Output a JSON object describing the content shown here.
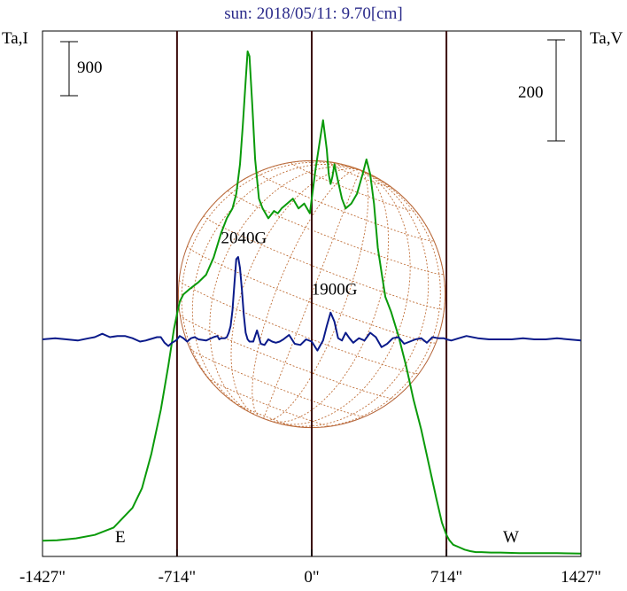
{
  "chart_data": {
    "type": "line",
    "title": "sun: 2018/05/11: 9.70[cm]",
    "left_axis_label": "Ta,I",
    "right_axis_label": "Ta,V",
    "left_scale_bar": "900",
    "right_scale_bar": "200",
    "x_ticks": [
      "-1427\"",
      "-714\"",
      "0\"",
      "714\"",
      "1427\""
    ],
    "x_tick_values": [
      -1427,
      -714,
      0,
      714,
      1427
    ],
    "xlim": [
      -1427,
      1427
    ],
    "vertical_lines": [
      -714,
      0,
      714
    ],
    "limb_labels": {
      "east": "E",
      "west": "W"
    },
    "annotations": [
      {
        "text": "2040G",
        "x": -360,
        "y": 3.6
      },
      {
        "text": "1900G",
        "x": 120,
        "y": 1.3
      }
    ],
    "series": [
      {
        "name": "I",
        "color": "#0a9a0a",
        "axis": "left",
        "x": [
          -1427,
          -1350,
          -1250,
          -1150,
          -1050,
          -950,
          -900,
          -850,
          -800,
          -760,
          -730,
          -714,
          -700,
          -680,
          -650,
          -600,
          -560,
          -520,
          -480,
          -450,
          -420,
          -400,
          -380,
          -365,
          -350,
          -340,
          -330,
          -315,
          -300,
          -280,
          -260,
          -230,
          -200,
          -180,
          -160,
          -130,
          -100,
          -70,
          -40,
          -10,
          0,
          20,
          40,
          60,
          80,
          90,
          100,
          110,
          120,
          140,
          160,
          180,
          210,
          240,
          270,
          290,
          310,
          330,
          350,
          370,
          390,
          420,
          460,
          500,
          540,
          580,
          620,
          660,
          690,
          714,
          730,
          750,
          780,
          810,
          840,
          870,
          900,
          950,
          1000,
          1100,
          1200,
          1300,
          1427
        ],
        "y": [
          30,
          40,
          80,
          150,
          300,
          700,
          1100,
          1800,
          2700,
          3600,
          4350,
          4650,
          4900,
          5050,
          5150,
          5300,
          5450,
          5800,
          6300,
          6600,
          6800,
          7100,
          7700,
          8500,
          9400,
          10000,
          9900,
          8900,
          7800,
          7000,
          6800,
          6600,
          6750,
          6700,
          6800,
          6900,
          7000,
          6800,
          6900,
          6700,
          7000,
          7600,
          8100,
          8600,
          8000,
          7500,
          7300,
          7450,
          7700,
          7350,
          7000,
          6800,
          6900,
          7100,
          7500,
          7800,
          7500,
          6900,
          6000,
          5500,
          5000,
          4700,
          4200,
          3600,
          2900,
          2300,
          1600,
          900,
          400,
          150,
          40,
          -50,
          -100,
          -150,
          -180,
          -200,
          -200,
          -210,
          -210,
          -220,
          -220,
          -220,
          -230
        ]
      },
      {
        "name": "V",
        "color": "#0a1a8a",
        "axis": "right",
        "x": [
          -1427,
          -1360,
          -1300,
          -1240,
          -1180,
          -1150,
          -1110,
          -1070,
          -1030,
          -990,
          -950,
          -910,
          -880,
          -860,
          -820,
          -800,
          -780,
          -760,
          -740,
          -720,
          -714,
          -700,
          -680,
          -660,
          -640,
          -620,
          -600,
          -560,
          -520,
          -500,
          -490,
          -480,
          -470,
          -460,
          -450,
          -440,
          -430,
          -420,
          -410,
          -400,
          -390,
          -380,
          -370,
          -360,
          -350,
          -340,
          -330,
          -310,
          -290,
          -270,
          -250,
          -230,
          -210,
          -190,
          -170,
          -150,
          -120,
          -90,
          -60,
          -30,
          0,
          30,
          60,
          80,
          100,
          120,
          140,
          160,
          180,
          200,
          220,
          250,
          280,
          310,
          340,
          370,
          400,
          430,
          460,
          490,
          520,
          550,
          580,
          610,
          640,
          670,
          700,
          714,
          740,
          780,
          820,
          880,
          940,
          1000,
          1060,
          1120,
          1180,
          1240,
          1300,
          1360,
          1427
        ],
        "y": [
          0,
          0.05,
          0,
          -0.05,
          0.05,
          0.1,
          0.25,
          0.1,
          0.15,
          0.15,
          0.05,
          -0.1,
          -0.05,
          0,
          0.1,
          0.1,
          -0.15,
          -0.3,
          -0.15,
          -0.05,
          0,
          0.15,
          0.05,
          -0.1,
          0.05,
          0.1,
          0,
          -0.05,
          0.1,
          0.15,
          0,
          0.05,
          0.05,
          0.05,
          0.1,
          0.3,
          0.6,
          1.3,
          2.5,
          3.6,
          3.7,
          3.2,
          2.2,
          1.1,
          0.3,
          0,
          -0.1,
          -0.1,
          0.4,
          -0.2,
          -0.25,
          0,
          -0.1,
          -0.15,
          -0.1,
          0,
          0.2,
          -0.2,
          -0.25,
          0,
          -0.1,
          -0.5,
          -0.05,
          0.6,
          1.2,
          0.8,
          0.05,
          -0.05,
          0.3,
          0.05,
          -0.15,
          0.05,
          -0.05,
          0.3,
          0.1,
          -0.35,
          -0.2,
          0.05,
          0.1,
          -0.2,
          -0.1,
          0,
          0.05,
          -0.15,
          0.1,
          0.05,
          0.05,
          0,
          -0.05,
          0.05,
          0.15,
          0.05,
          0,
          0,
          0,
          0.05,
          0,
          0,
          0.05,
          0,
          -0.05
        ]
      }
    ],
    "grid": false
  }
}
